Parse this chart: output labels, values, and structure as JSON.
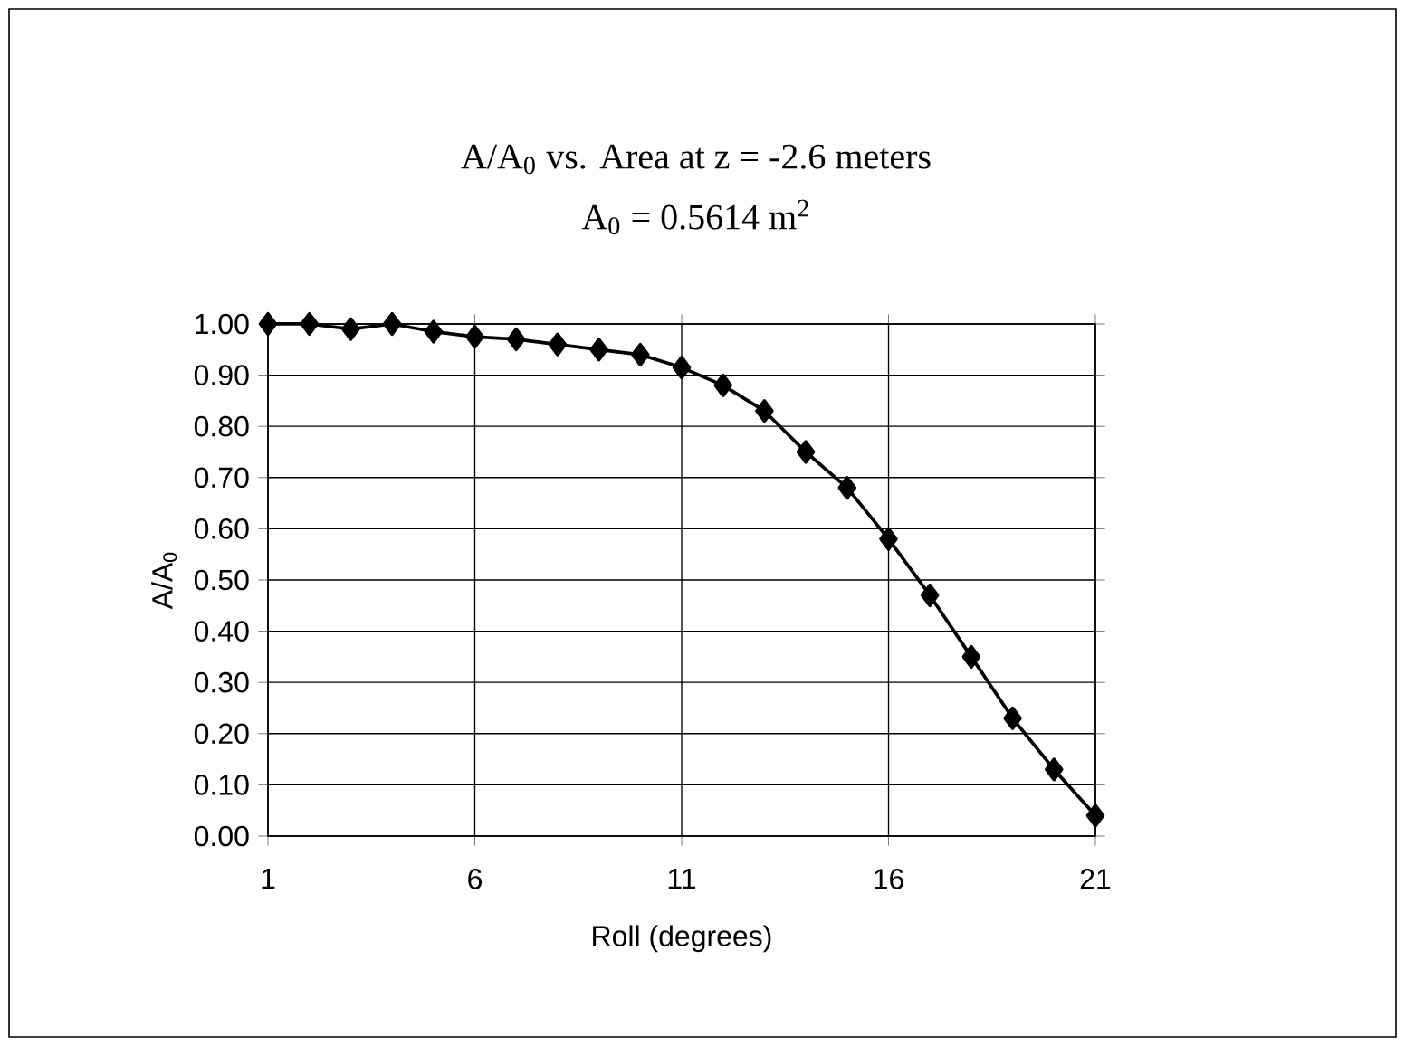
{
  "chart_data": {
    "type": "line",
    "title": "A/A$_{0}$  vs. Area at z = -2.6 meters",
    "subtitle": "A$_{0}$ = 0.5614 m$^{2}$",
    "xlabel": "Roll (degrees)",
    "ylabel": "A/A$_{0}$",
    "x": [
      1,
      2,
      3,
      4,
      5,
      6,
      7,
      8,
      9,
      10,
      11,
      12,
      13,
      14,
      15,
      16,
      17,
      18,
      19,
      20,
      21
    ],
    "series": [
      {
        "color": "#000000",
        "values": [
          1.0,
          1.0,
          0.99,
          1.0,
          0.985,
          0.975,
          0.97,
          0.96,
          0.95,
          0.94,
          0.915,
          0.88,
          0.83,
          0.75,
          0.68,
          0.58,
          0.47,
          0.35,
          0.23,
          0.13,
          0.04
        ]
      }
    ],
    "xlim": [
      1,
      21
    ],
    "xticks": [
      1,
      6,
      11,
      16,
      21
    ],
    "ylim": [
      0,
      1
    ],
    "yticks": [
      {
        "value": 0,
        "label": "0.00"
      },
      {
        "value": 0.1,
        "label": "0.10"
      },
      {
        "value": 0.2,
        "label": "0.20"
      },
      {
        "value": 0.3,
        "label": "0.30"
      },
      {
        "value": 0.4,
        "label": "0.40"
      },
      {
        "value": 0.5,
        "label": "0.50"
      },
      {
        "value": 0.6,
        "label": "0.60"
      },
      {
        "value": 0.7,
        "label": "0.70"
      },
      {
        "value": 0.8,
        "label": "0.80"
      },
      {
        "value": 0.9,
        "label": "0.90"
      },
      {
        "value": 1,
        "label": "1.00"
      }
    ],
    "grid": true,
    "marker": "diamond",
    "line_style": "solid"
  }
}
